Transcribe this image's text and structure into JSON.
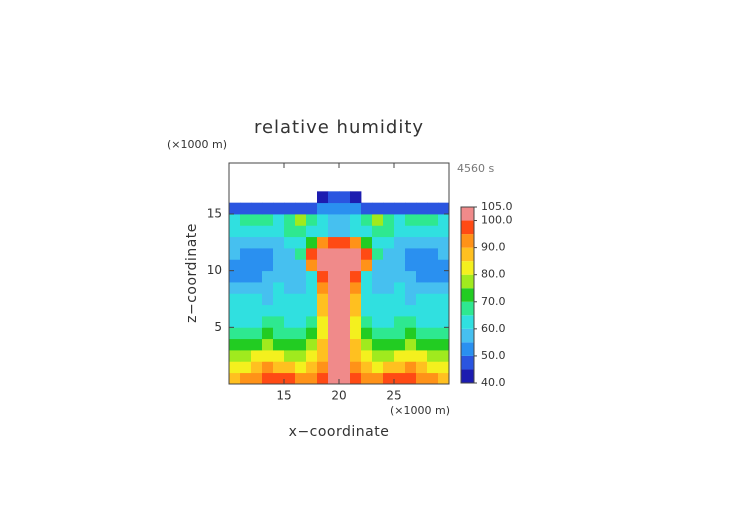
{
  "chart_data": {
    "type": "contour",
    "title": "relative humidity",
    "y_unit": "(×1000 m)",
    "x_unit": "(×1000 m)",
    "time_label": "4560 s",
    "x_label": "x−coordinate",
    "y_label": "z−coordinate",
    "xlim": [
      10,
      30
    ],
    "ylim": [
      0,
      19.5
    ],
    "xticks": [
      15,
      20,
      25
    ],
    "yticks": [
      5,
      10,
      15
    ],
    "x": [
      10.5,
      11.5,
      12.5,
      13.5,
      14.5,
      15.5,
      16.5,
      17.5,
      18.5,
      19.5,
      20.5,
      21.5,
      22.5,
      23.5,
      24.5,
      25.5,
      26.5,
      27.5,
      28.5,
      29.5
    ],
    "y": [
      0.5,
      1.5,
      2.5,
      3.5,
      4.5,
      5.5,
      6.5,
      7.5,
      8.5,
      9.5,
      10.5,
      11.5,
      12.5,
      13.5,
      14.5,
      15.5,
      16.5
    ],
    "z": [
      [
        88,
        90,
        92,
        96,
        98,
        97,
        94,
        92,
        96,
        101,
        101,
        96,
        92,
        94,
        97,
        98,
        96,
        92,
        90,
        88
      ],
      [
        82,
        84,
        86,
        90,
        88,
        85,
        84,
        86,
        92,
        101,
        101,
        92,
        86,
        84,
        85,
        88,
        90,
        86,
        84,
        82
      ],
      [
        76,
        78,
        82,
        84,
        80,
        77,
        78,
        82,
        88,
        101,
        101,
        88,
        82,
        78,
        77,
        80,
        84,
        82,
        78,
        76
      ],
      [
        72,
        70,
        72,
        76,
        74,
        70,
        72,
        76,
        86,
        101,
        101,
        86,
        76,
        72,
        70,
        74,
        76,
        72,
        70,
        72
      ],
      [
        66,
        66,
        68,
        70,
        68,
        66,
        66,
        70,
        84,
        101,
        101,
        84,
        70,
        66,
        66,
        68,
        70,
        68,
        66,
        66
      ],
      [
        62,
        63,
        64,
        66,
        65,
        63,
        62,
        66,
        84,
        101,
        101,
        84,
        66,
        62,
        63,
        65,
        66,
        64,
        63,
        62
      ],
      [
        61,
        62,
        63,
        62,
        61,
        61,
        62,
        64,
        86,
        101,
        101,
        86,
        64,
        62,
        61,
        61,
        62,
        63,
        62,
        61
      ],
      [
        60,
        61,
        60,
        59,
        60,
        61,
        62,
        64,
        88,
        101,
        101,
        88,
        64,
        62,
        61,
        60,
        59,
        60,
        61,
        60
      ],
      [
        57,
        56,
        56,
        58,
        60,
        59,
        58,
        62,
        92,
        101,
        101,
        92,
        62,
        58,
        59,
        60,
        58,
        56,
        56,
        57
      ],
      [
        54,
        52,
        53,
        57,
        58,
        56,
        55,
        60,
        96,
        102,
        102,
        96,
        60,
        55,
        56,
        58,
        57,
        53,
        52,
        54
      ],
      [
        54,
        52,
        51,
        54,
        56,
        55,
        58,
        90,
        101,
        102,
        102,
        101,
        90,
        58,
        55,
        56,
        54,
        51,
        52,
        54
      ],
      [
        55,
        53,
        52,
        53,
        55,
        57,
        66,
        98,
        102,
        102,
        102,
        102,
        98,
        66,
        57,
        55,
        53,
        52,
        53,
        55
      ],
      [
        58,
        57,
        55,
        56,
        58,
        60,
        62,
        70,
        94,
        96,
        96,
        94,
        70,
        62,
        60,
        58,
        56,
        55,
        57,
        58
      ],
      [
        62,
        64,
        64,
        63,
        62,
        66,
        68,
        64,
        60,
        56,
        56,
        60,
        64,
        68,
        66,
        62,
        63,
        64,
        64,
        62
      ],
      [
        64,
        66,
        66,
        66,
        64,
        68,
        76,
        68,
        62,
        58,
        58,
        62,
        68,
        76,
        68,
        64,
        66,
        66,
        66,
        64
      ],
      [
        46,
        46,
        47,
        48,
        48,
        48,
        47,
        47,
        50,
        52,
        52,
        50,
        47,
        47,
        48,
        48,
        48,
        47,
        46,
        46
      ],
      [
        null,
        null,
        null,
        null,
        null,
        null,
        null,
        null,
        44,
        46,
        46,
        44,
        null,
        null,
        null,
        null,
        null,
        null,
        null,
        null
      ]
    ],
    "levels": [
      40,
      45,
      50,
      55,
      60,
      65,
      70,
      75,
      80,
      85,
      90,
      95,
      100,
      105
    ],
    "colors": [
      "#1c1cb0",
      "#2a55e0",
      "#2a90f0",
      "#46c0f0",
      "#30e0e0",
      "#2ee890",
      "#22cc22",
      "#a0ea1e",
      "#f4f01e",
      "#ffc020",
      "#ff9218",
      "#ff4a14",
      "#f08a8a"
    ],
    "colorbar_ticks": [
      {
        "value": 105,
        "label": "105.0"
      },
      {
        "value": 100,
        "label": "100.0"
      },
      {
        "value": 90,
        "label": "90.0"
      },
      {
        "value": 80,
        "label": "80.0"
      },
      {
        "value": 70,
        "label": "70.0"
      },
      {
        "value": 60,
        "label": "60.0"
      },
      {
        "value": 50,
        "label": "50.0"
      },
      {
        "value": 40,
        "label": "40.0"
      }
    ]
  }
}
